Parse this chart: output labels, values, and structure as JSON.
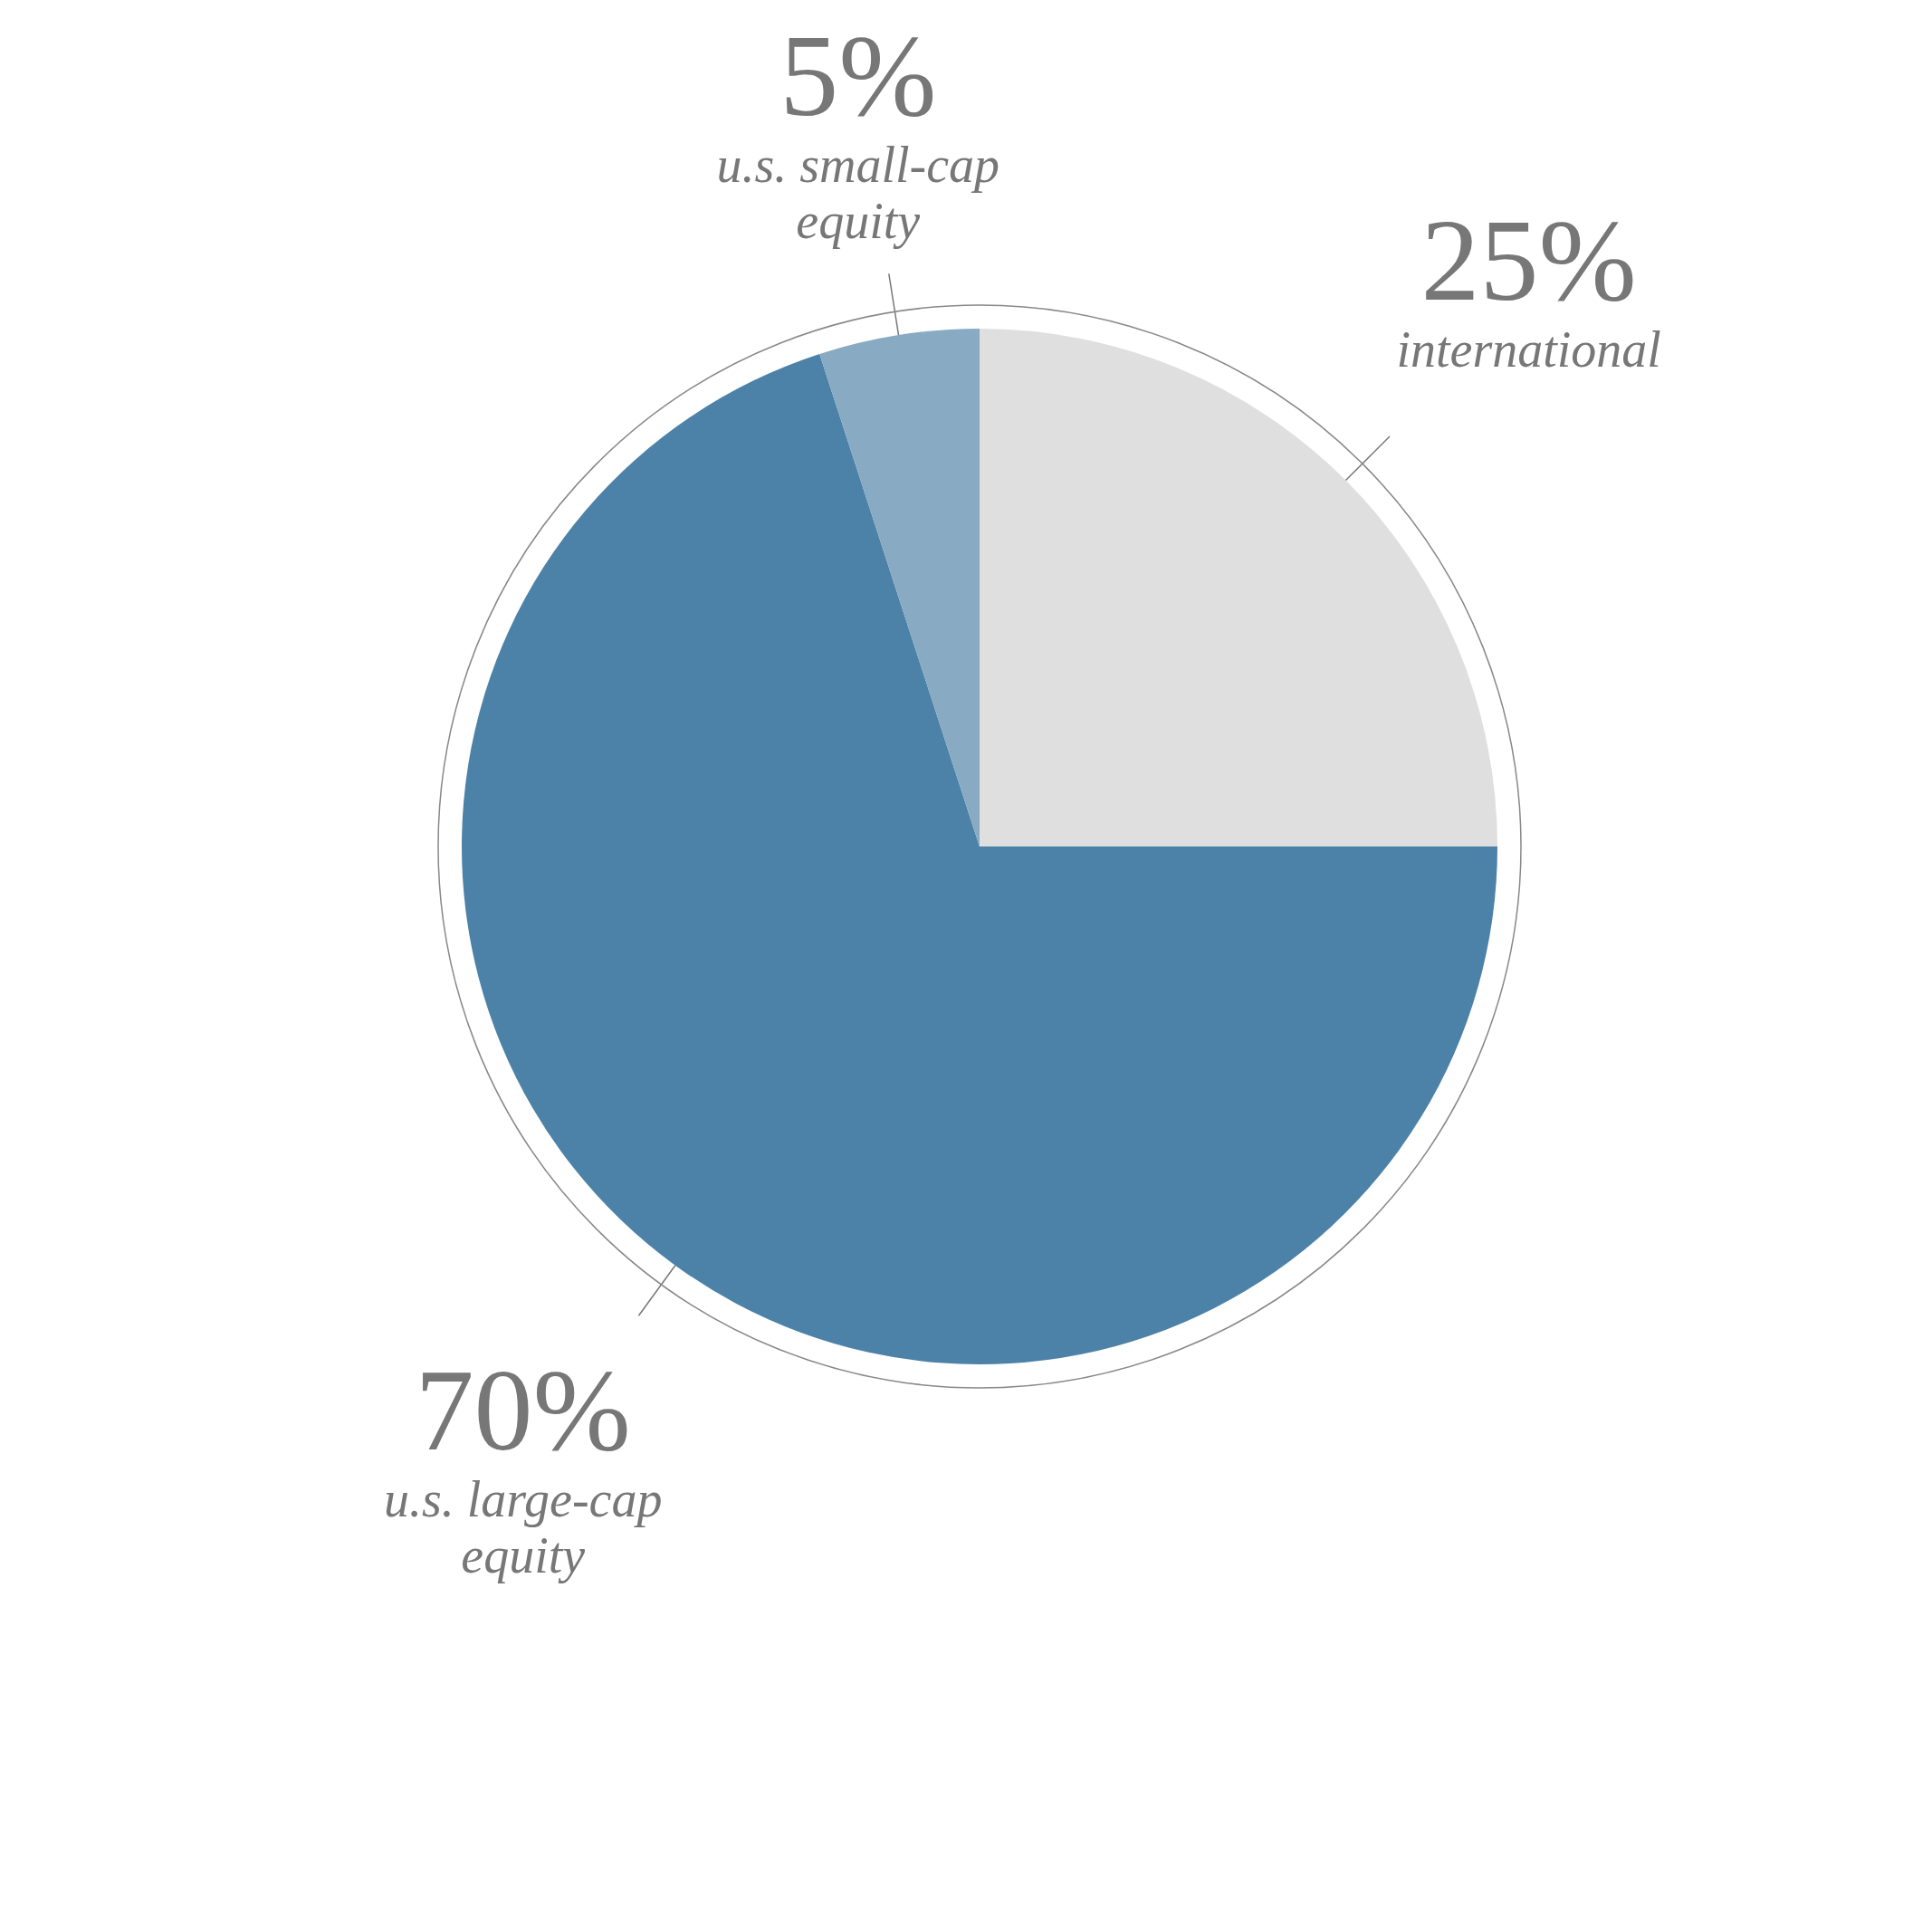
{
  "chart_data": {
    "type": "pie",
    "categories": [
      "international",
      "u.s. large-cap equity",
      "u.s. small-cap equity"
    ],
    "values": [
      25,
      70,
      5
    ],
    "colors": [
      "#dfdfdf",
      "#4d82a8",
      "#88aac3"
    ],
    "value_labels": [
      "25%",
      "70%",
      "5%"
    ],
    "legend": false
  }
}
